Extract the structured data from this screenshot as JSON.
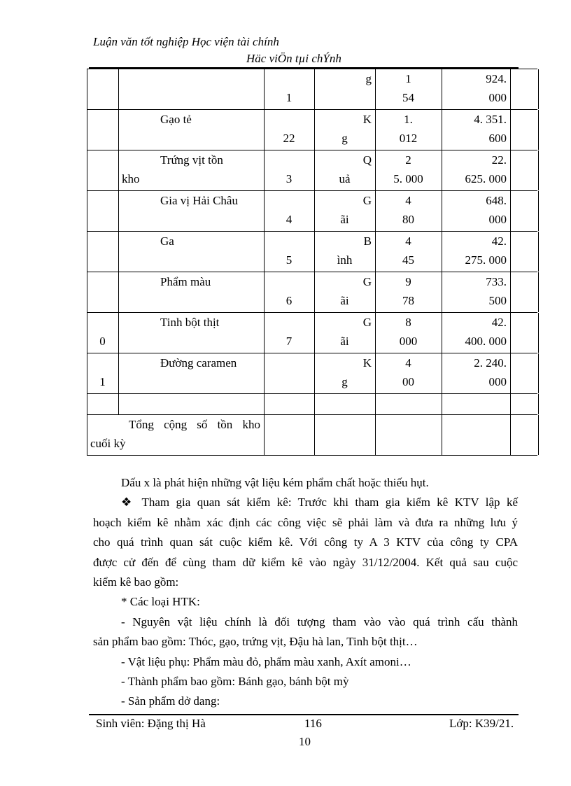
{
  "header": {
    "line1": "Luận văn tốt nghiệp Học viện tài chính",
    "line2": "Häc viÖn tµi chÝnh"
  },
  "table": {
    "rows": [
      {
        "stt": [
          "",
          ""
        ],
        "name": [
          "",
          ""
        ],
        "code": [
          "",
          "1"
        ],
        "unit": [
          "g",
          ""
        ],
        "qty": [
          "1",
          "54"
        ],
        "amount": [
          "924.",
          "000"
        ]
      },
      {
        "stt": [
          "",
          ""
        ],
        "name": [
          "Gạo tẻ",
          ""
        ],
        "code": [
          "",
          "22"
        ],
        "unit": [
          "K",
          "g"
        ],
        "qty": [
          "1.",
          "012"
        ],
        "amount": [
          "4. 351.",
          "600"
        ]
      },
      {
        "stt": [
          "",
          ""
        ],
        "name": [
          "Trứng vịt tồn",
          "kho"
        ],
        "code": [
          "",
          "3"
        ],
        "unit": [
          "Q",
          "uả"
        ],
        "qty": [
          "2",
          "5. 000"
        ],
        "amount": [
          "22.",
          "625. 000"
        ]
      },
      {
        "stt": [
          "",
          ""
        ],
        "name": [
          "Gia vị Hải Châu",
          ""
        ],
        "code": [
          "",
          "4"
        ],
        "unit": [
          "G",
          "ãi"
        ],
        "qty": [
          "4",
          "80"
        ],
        "amount": [
          "648.",
          "000"
        ]
      },
      {
        "stt": [
          "",
          ""
        ],
        "name": [
          "Ga",
          ""
        ],
        "code": [
          "",
          "5"
        ],
        "unit": [
          "B",
          "ình"
        ],
        "qty": [
          "4",
          "45"
        ],
        "amount": [
          "42.",
          "275. 000"
        ]
      },
      {
        "stt": [
          "",
          ""
        ],
        "name": [
          "Phẩm màu",
          ""
        ],
        "code": [
          "",
          "6"
        ],
        "unit": [
          "G",
          "ãi"
        ],
        "qty": [
          "9",
          "78"
        ],
        "amount": [
          "733.",
          "500"
        ]
      },
      {
        "stt": [
          "",
          "0"
        ],
        "name": [
          "Tinh bột thịt",
          ""
        ],
        "code": [
          "",
          "7"
        ],
        "unit": [
          "G",
          "ãi"
        ],
        "qty": [
          "8",
          "000"
        ],
        "amount": [
          "42.",
          "400. 000"
        ]
      },
      {
        "stt": [
          "",
          "1"
        ],
        "name": [
          "Đường caramen",
          ""
        ],
        "code": [
          "",
          ""
        ],
        "unit": [
          "K",
          "g"
        ],
        "qty": [
          "4",
          "00"
        ],
        "amount": [
          "2. 240.",
          "000"
        ]
      }
    ],
    "total_label": [
      "Tổng cộng số tồn kho",
      "cuối kỳ"
    ]
  },
  "body": {
    "p1": "Dấu x là phát hiện những vật liệu kém phẩm chất hoặc thiếu hụt.",
    "bullet_icon": "diamond-bullet-icon",
    "p2_first": "Tham gia quan sát kiểm kê: Trước khi tham gia kiểm kê KTV lập kế",
    "p2_l2": "hoạch kiểm kê nhằm xác định các công việc sẽ phải làm và đưa ra những lưu ý",
    "p2_l3": "cho quá trình quan sát cuộc kiểm kê. Với công ty A 3 KTV của công ty CPA",
    "p2_l4": "được cử đến để cùng tham dữ kiểm kê vào ngày 31/12/2004. Kết quả sau cuộc",
    "p2_l5": "kiểm kê bao gồm:",
    "p3": "* Các loại HTK:",
    "p4_l1": "- Nguyên vật liệu chính là đối tượng tham vào vào quá trình cấu thành",
    "p4_l2": "sản phẩm bao gồm: Thóc, gạo, trứng vịt, Đậu hà lan, Tinh bột thịt…",
    "p5": "- Vật liệu phụ: Phẩm màu đỏ, phẩm màu xanh, Axít amoni…",
    "p6": "- Thành phẩm bao gồm: Bánh gạo, bánh bột mỳ",
    "p7": "- Sản phẩm dở dang:"
  },
  "footer": {
    "student": "Sinh viên: Đặng thị Hà",
    "page": "116",
    "page2": "10",
    "class": "Lớp: K39/21."
  }
}
